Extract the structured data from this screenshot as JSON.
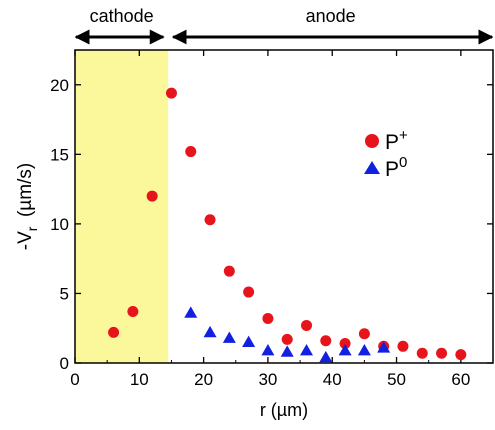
{
  "chart_data": {
    "type": "scatter",
    "xlabel": "r (µm)",
    "ylabel_base": "-V",
    "ylabel_sub": "r",
    "ylabel_units": "(µm/s)",
    "xlim": [
      0,
      65
    ],
    "ylim": [
      0,
      22.5
    ],
    "xticks": [
      0,
      10,
      20,
      30,
      40,
      50,
      60
    ],
    "yticks": [
      0,
      5,
      10,
      15,
      20
    ],
    "grid": false,
    "legend_position": "upper-right",
    "regions": [
      {
        "label": "cathode",
        "x_start": 0,
        "x_end": 14.5,
        "color": "#fbf79b"
      },
      {
        "label": "anode",
        "x_start": 14.5,
        "x_end": 65
      }
    ],
    "series": [
      {
        "name": "P",
        "name_sup": "+",
        "marker": "circle",
        "color": "#e8141c",
        "x": [
          6,
          9,
          12,
          15,
          18,
          21,
          24,
          27,
          30,
          33,
          36,
          39,
          42,
          45,
          48,
          51,
          54,
          57,
          60
        ],
        "y": [
          2.2,
          3.7,
          12.0,
          19.4,
          15.2,
          10.3,
          6.6,
          5.1,
          3.2,
          1.7,
          2.7,
          1.6,
          1.4,
          2.1,
          1.2,
          1.2,
          0.7,
          0.7,
          0.6
        ]
      },
      {
        "name": "P",
        "name_sup": "0",
        "marker": "triangle",
        "color": "#1220e0",
        "x": [
          18,
          21,
          24,
          27,
          30,
          33,
          36,
          39,
          42,
          45,
          48
        ],
        "y": [
          3.6,
          2.2,
          1.8,
          1.5,
          0.9,
          0.8,
          0.9,
          0.4,
          0.9,
          0.9,
          1.1
        ]
      }
    ]
  }
}
